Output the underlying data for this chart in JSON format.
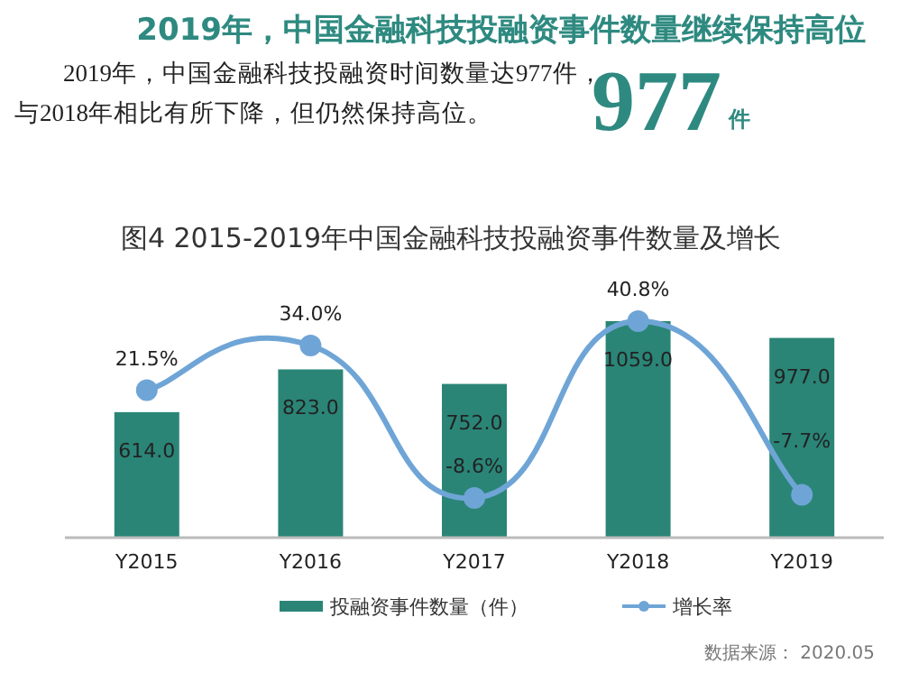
{
  "chart_data": {
    "type": "bar",
    "title": "2019年，中国金融科技投融资事件数量继续保持高位",
    "subtitle": "2019年，中国金融科技投融资时间数量达977件，与2018年相比有所下降，但仍然保持高位。",
    "annotations": [
      "977",
      "件",
      "图4  2015-2019年中国金融科技投融资事件数量及增长",
      "数据来源： 2020.05"
    ],
    "categories": [
      "Y2015",
      "Y2016",
      "Y2017",
      "Y2018",
      "Y2019"
    ],
    "series": [
      {
        "name": "投融资事件数量（件）",
        "color": "#2a8577",
        "values": [
          614.0,
          823.0,
          752.0,
          1059.0,
          977.0
        ],
        "value_labels": [
          "614.0",
          "823.0",
          "752.0",
          "1059.0",
          "977.0"
        ]
      },
      {
        "name": "增长率",
        "type": "line",
        "axis": "y2",
        "color": "#6fa5d6",
        "marker": "circle",
        "values": [
          21.5,
          34.0,
          -8.6,
          40.8,
          -7.7
        ],
        "value_labels": [
          "21.5%",
          "34.0%",
          "-8.6%",
          "40.8%",
          "-7.7%"
        ]
      }
    ],
    "legend": "bottom"
  }
}
